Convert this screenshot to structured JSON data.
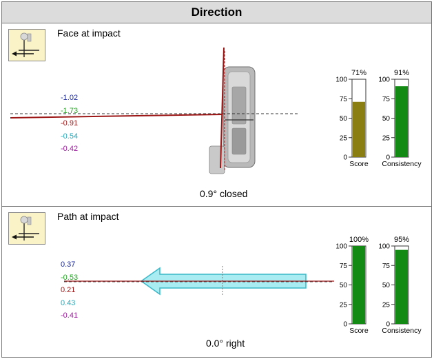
{
  "section_title": "Direction",
  "colors": {
    "blue": "#1c2a9c",
    "green": "#24a624",
    "red": "#9c1616",
    "cyan": "#27a8b8",
    "purple": "#9a1b9a",
    "olive": "#8a7d12",
    "gauge_green": "#138a13",
    "arrow_fill": "#a9edf3",
    "arrow_stroke": "#3bb8c8"
  },
  "face": {
    "title": "Face at impact",
    "icon": "golfer-direction-icon",
    "values": [
      {
        "text": "-1.02",
        "color": "blue"
      },
      {
        "text": "-1.73",
        "color": "green"
      },
      {
        "text": "-0.91",
        "color": "red"
      },
      {
        "text": "-0.54",
        "color": "cyan"
      },
      {
        "text": "-0.42",
        "color": "purple"
      }
    ],
    "caption": "0.9° closed",
    "gauges": [
      {
        "label": "Score",
        "percent_label": "71%",
        "value": 71,
        "color": "olive"
      },
      {
        "label": "Consistency",
        "percent_label": "91%",
        "value": 91,
        "color": "gauge_green"
      }
    ],
    "ticks": [
      "100",
      "75",
      "50",
      "25",
      "0"
    ]
  },
  "path": {
    "title": "Path at impact",
    "icon": "golfer-direction-icon",
    "values": [
      {
        "text": "0.37",
        "color": "blue"
      },
      {
        "text": "-0.53",
        "color": "green"
      },
      {
        "text": "0.21",
        "color": "red"
      },
      {
        "text": "0.43",
        "color": "cyan"
      },
      {
        "text": "-0.41",
        "color": "purple"
      }
    ],
    "caption": "0.0° right",
    "gauges": [
      {
        "label": "Score",
        "percent_label": "100%",
        "value": 100,
        "color": "gauge_green"
      },
      {
        "label": "Consistency",
        "percent_label": "95%",
        "value": 95,
        "color": "gauge_green"
      }
    ],
    "ticks": [
      "100",
      "75",
      "50",
      "25",
      "0"
    ]
  }
}
